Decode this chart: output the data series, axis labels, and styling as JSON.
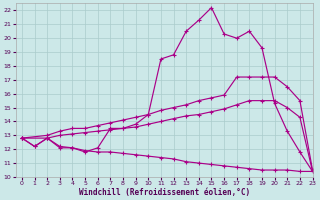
{
  "xlabel": "Windchill (Refroidissement éolien,°C)",
  "ylabel": "",
  "xlim": [
    -0.5,
    23
  ],
  "ylim": [
    10,
    22.5
  ],
  "xticks": [
    0,
    1,
    2,
    3,
    4,
    5,
    6,
    7,
    8,
    9,
    10,
    11,
    12,
    13,
    14,
    15,
    16,
    17,
    18,
    19,
    20,
    21,
    22,
    23
  ],
  "yticks": [
    10,
    11,
    12,
    13,
    14,
    15,
    16,
    17,
    18,
    19,
    20,
    21,
    22
  ],
  "background_color": "#cce8e8",
  "line_color": "#aa0088",
  "grid_color": "#bbdddd",
  "line1_x": [
    0,
    1,
    2,
    3,
    4,
    5,
    6,
    7,
    8,
    9,
    10,
    11,
    12,
    13,
    14,
    15,
    16,
    17,
    18,
    19,
    20,
    21,
    22,
    23
  ],
  "line1_y": [
    12.8,
    12.2,
    12.8,
    12.1,
    12.1,
    11.8,
    12.1,
    13.5,
    13.5,
    13.8,
    14.5,
    18.5,
    18.8,
    20.5,
    21.3,
    22.2,
    20.3,
    20.0,
    20.5,
    19.3,
    15.3,
    13.3,
    11.8,
    10.4
  ],
  "line2_x": [
    0,
    2,
    3,
    4,
    5,
    6,
    7,
    8,
    9,
    10,
    11,
    12,
    13,
    14,
    15,
    16,
    17,
    18,
    19,
    20,
    21,
    22,
    23
  ],
  "line2_y": [
    12.8,
    13.0,
    13.3,
    13.5,
    13.5,
    13.7,
    13.9,
    14.1,
    14.3,
    14.5,
    14.8,
    15.0,
    15.2,
    15.5,
    15.7,
    15.9,
    17.2,
    17.2,
    17.2,
    17.2,
    16.5,
    15.5,
    10.5
  ],
  "line3_x": [
    0,
    2,
    3,
    4,
    5,
    6,
    7,
    8,
    9,
    10,
    11,
    12,
    13,
    14,
    15,
    16,
    17,
    18,
    19,
    20,
    21,
    22,
    23
  ],
  "line3_y": [
    12.8,
    12.8,
    13.0,
    13.1,
    13.2,
    13.3,
    13.4,
    13.5,
    13.6,
    13.8,
    14.0,
    14.2,
    14.4,
    14.5,
    14.7,
    14.9,
    15.2,
    15.5,
    15.5,
    15.5,
    15.0,
    14.3,
    10.4
  ],
  "line4_x": [
    0,
    1,
    2,
    3,
    4,
    5,
    6,
    7,
    8,
    9,
    10,
    11,
    12,
    13,
    14,
    15,
    16,
    17,
    18,
    19,
    20,
    21,
    22,
    23
  ],
  "line4_y": [
    12.8,
    12.2,
    12.8,
    12.2,
    12.1,
    11.9,
    11.8,
    11.8,
    11.7,
    11.6,
    11.5,
    11.4,
    11.3,
    11.1,
    11.0,
    10.9,
    10.8,
    10.7,
    10.6,
    10.5,
    10.5,
    10.5,
    10.4,
    10.4
  ]
}
